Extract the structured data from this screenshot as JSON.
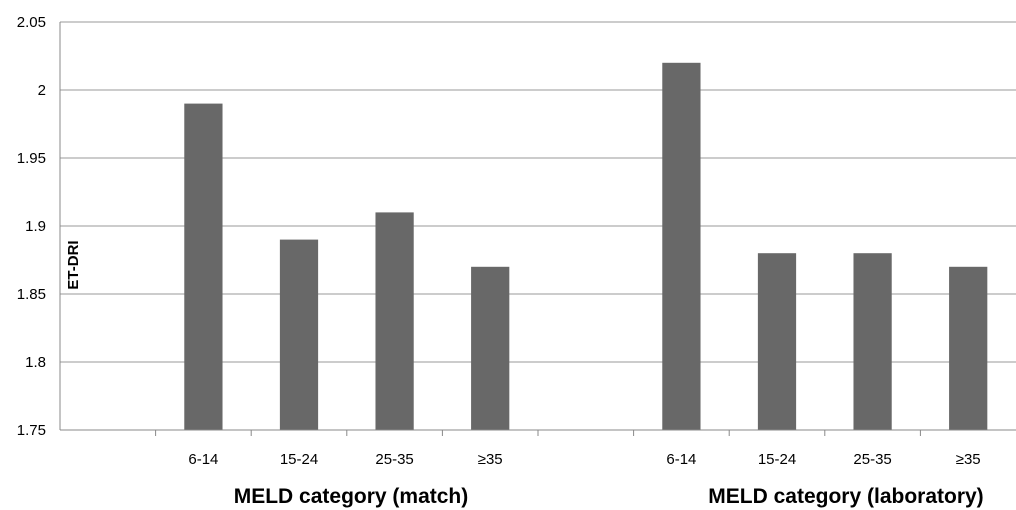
{
  "chart_data": {
    "type": "bar",
    "title": "",
    "ylabel": "ET-DRI",
    "ylim": [
      1.75,
      2.05
    ],
    "yticks": [
      "1.75",
      "1.8",
      "1.85",
      "1.9",
      "1.95",
      "2",
      "2.05"
    ],
    "ytick_values": [
      1.75,
      1.8,
      1.85,
      1.9,
      1.95,
      2.0,
      2.05
    ],
    "grid": true,
    "bar_color": "#686868",
    "groups": [
      {
        "label": "MELD category (match)",
        "categories": [
          "6-14",
          "15-24",
          "25-35",
          "≥35"
        ],
        "values": [
          1.99,
          1.89,
          1.91,
          1.87
        ]
      },
      {
        "label": "MELD category (laboratory)",
        "categories": [
          "6-14",
          "15-24",
          "25-35",
          "≥35"
        ],
        "values": [
          2.02,
          1.88,
          1.88,
          1.87
        ]
      }
    ]
  }
}
